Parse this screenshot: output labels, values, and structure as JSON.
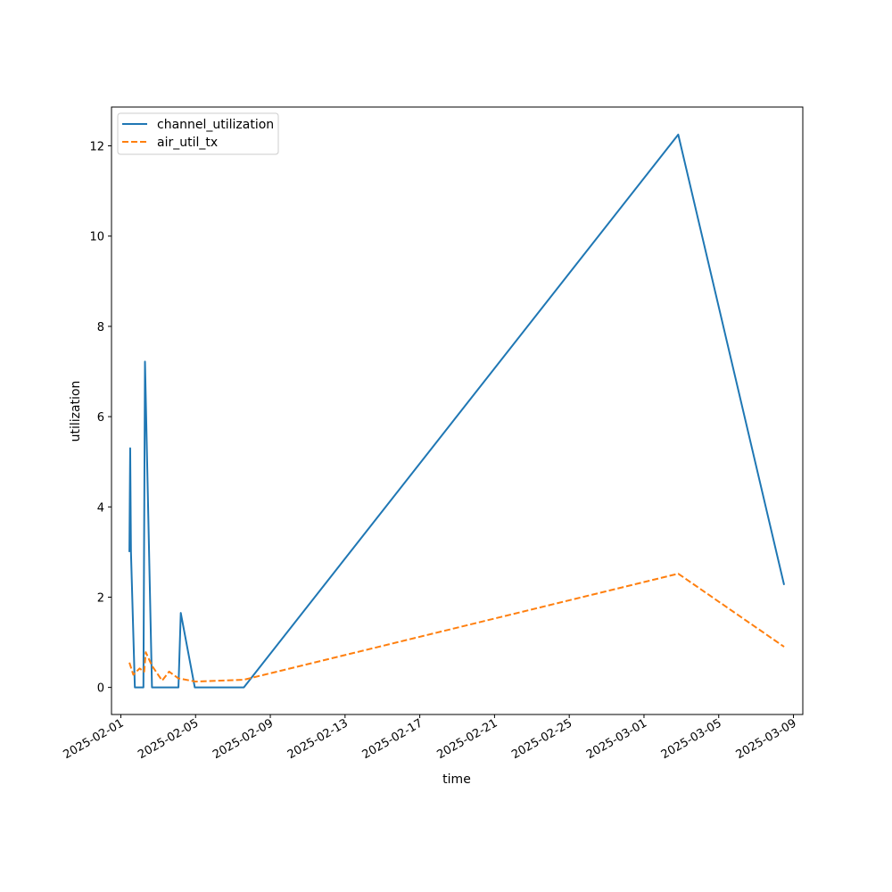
{
  "chart_data": {
    "type": "line",
    "title": "",
    "xlabel": "time",
    "ylabel": "utilization",
    "x_type": "date",
    "xlim": [
      "2025-01-31T12:00",
      "2025-03-09T12:00"
    ],
    "ylim": [
      -0.6,
      12.86
    ],
    "x_ticks": [
      "2025-02-01",
      "2025-02-05",
      "2025-02-09",
      "2025-02-13",
      "2025-02-17",
      "2025-02-21",
      "2025-02-25",
      "2025-03-01",
      "2025-03-05",
      "2025-03-09"
    ],
    "y_ticks": [
      0,
      2,
      4,
      6,
      8,
      10,
      12
    ],
    "grid": false,
    "legend_position": "top-left",
    "series": [
      {
        "name": "channel_utilization",
        "color": "#1f77b4",
        "dash": "solid",
        "points": [
          [
            "2025-02-01T11:00",
            3.0
          ],
          [
            "2025-02-01T12:00",
            5.3
          ],
          [
            "2025-02-01T13:00",
            3.0
          ],
          [
            "2025-02-01T18:00",
            0.0
          ],
          [
            "2025-02-02T05:00",
            0.0
          ],
          [
            "2025-02-02T07:00",
            7.22
          ],
          [
            "2025-02-02T16:00",
            0.0
          ],
          [
            "2025-02-04T02:00",
            0.0
          ],
          [
            "2025-02-04T05:00",
            1.65
          ],
          [
            "2025-02-04T23:00",
            0.0
          ],
          [
            "2025-02-07T14:00",
            0.0
          ],
          [
            "2025-03-02T20:00",
            12.25
          ],
          [
            "2025-03-08T12:00",
            2.27
          ]
        ]
      },
      {
        "name": "air_util_tx",
        "color": "#ff7f0e",
        "dash": "dashed",
        "points": [
          [
            "2025-02-01T11:00",
            0.55
          ],
          [
            "2025-02-01T16:00",
            0.28
          ],
          [
            "2025-02-02T00:00",
            0.42
          ],
          [
            "2025-02-02T06:00",
            0.35
          ],
          [
            "2025-02-02T08:00",
            0.78
          ],
          [
            "2025-02-02T16:00",
            0.48
          ],
          [
            "2025-02-03T05:00",
            0.15
          ],
          [
            "2025-02-03T14:00",
            0.35
          ],
          [
            "2025-02-04T02:00",
            0.2
          ],
          [
            "2025-02-05T00:00",
            0.13
          ],
          [
            "2025-02-07T14:00",
            0.17
          ],
          [
            "2025-03-02T20:00",
            2.52
          ],
          [
            "2025-03-08T12:00",
            0.9
          ]
        ]
      }
    ]
  }
}
